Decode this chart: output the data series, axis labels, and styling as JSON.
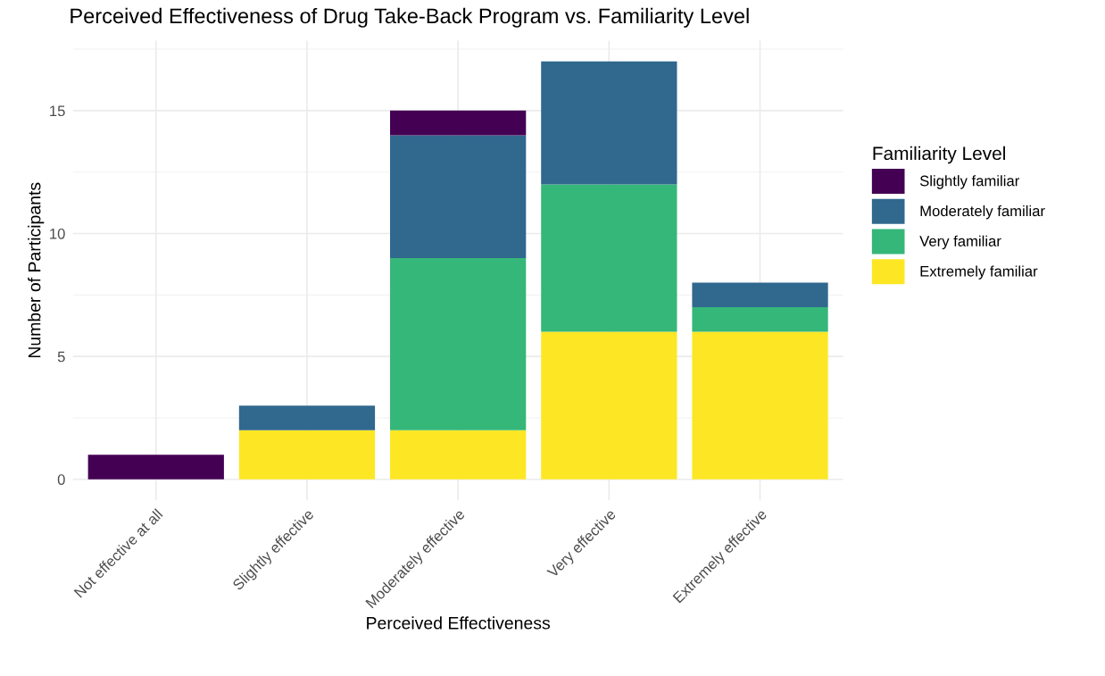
{
  "chart_data": {
    "type": "bar",
    "title": "Perceived Effectiveness of Drug Take-Back Program vs. Familiarity Level",
    "xlabel": "Perceived Effectiveness",
    "ylabel": "Number of Participants",
    "legend_title": "Familiarity Level",
    "categories": [
      "Not effective at all",
      "Slightly effective",
      "Moderately effective",
      "Very effective",
      "Extremely effective"
    ],
    "stacked": true,
    "series": [
      {
        "name": "Extremely familiar",
        "color": "#fde725",
        "values": [
          0,
          2,
          2,
          6,
          6
        ]
      },
      {
        "name": "Very familiar",
        "color": "#35b779",
        "values": [
          0,
          0,
          7,
          6,
          1
        ]
      },
      {
        "name": "Moderately familiar",
        "color": "#31688e",
        "values": [
          0,
          1,
          5,
          5,
          1
        ]
      },
      {
        "name": "Slightly familiar",
        "color": "#440154",
        "values": [
          1,
          0,
          1,
          0,
          0
        ]
      }
    ],
    "ylim": [
      -0.85,
      17.85
    ],
    "yticks": [
      0,
      5,
      10,
      15
    ],
    "grid": true,
    "legend": "right"
  }
}
